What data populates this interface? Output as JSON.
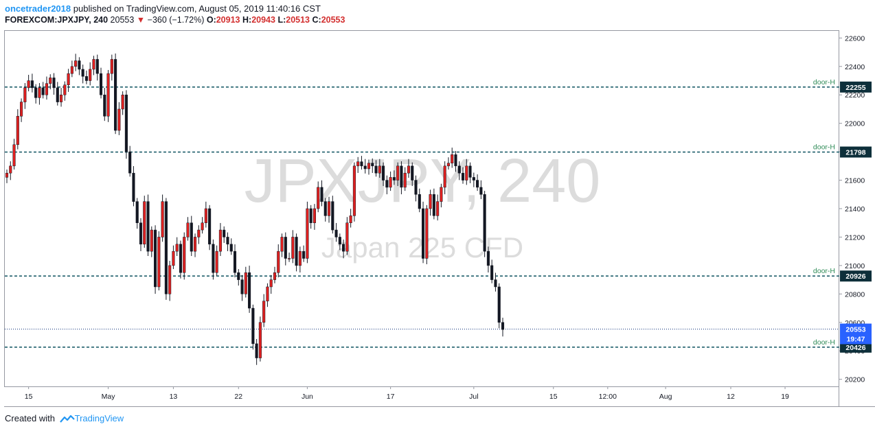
{
  "header": {
    "author": "oncetrader2018",
    "published_text": "published on TradingView.com, August 05, 2019 11:40:16 CST",
    "symbol": "FOREXCOM:JPXJPY, 240",
    "last": "20553",
    "change": "−360 (−1.72%)",
    "o_label": "O:",
    "o_value": "20913",
    "h_label": "H:",
    "h_value": "20943",
    "l_label": "L:",
    "l_value": "20513",
    "c_label": "C:",
    "c_value": "20553"
  },
  "watermark": {
    "symbol": "JPXJPY, 240",
    "name": "Japan 225 CFD"
  },
  "footer": {
    "created_with": "Created with",
    "brand": "TradingView"
  },
  "colors": {
    "up": "#e02020",
    "down": "#131722",
    "level_line": "#1f5f6b",
    "level_label": "#2e8b57",
    "price_box": "#0d2f3a",
    "last_box": "#2962ff",
    "grid_border": "#9598a1"
  },
  "chart_data": {
    "type": "candlestick",
    "interval": "240",
    "ylim": [
      20150,
      22650
    ],
    "y_ticks": [
      20200,
      20400,
      20600,
      20800,
      21000,
      21200,
      21400,
      21600,
      21800,
      22000,
      22200,
      22400,
      22600
    ],
    "x_ticks": [
      {
        "label": "15",
        "x_idx": 6
      },
      {
        "label": "May",
        "x_idx": 28
      },
      {
        "label": "13",
        "x_idx": 46
      },
      {
        "label": "22",
        "x_idx": 64
      },
      {
        "label": "Jun",
        "x_idx": 83
      },
      {
        "label": "17",
        "x_idx": 106
      },
      {
        "label": "Jul",
        "x_idx": 129
      },
      {
        "label": "15",
        "x_idx": 151
      },
      {
        "label": "12:00",
        "x_idx": 166
      },
      {
        "label": "Aug",
        "x_idx": 182
      },
      {
        "label": "12",
        "x_idx": 200
      },
      {
        "label": "19",
        "x_idx": 215
      }
    ],
    "levels": [
      {
        "price": 22255,
        "label": "door-H",
        "value": "22255"
      },
      {
        "price": 21798,
        "label": "door-H",
        "value": "21798"
      },
      {
        "price": 20926,
        "label": "door-H",
        "value": "20926"
      },
      {
        "price": 20426,
        "label": "door-H",
        "value": "20426"
      }
    ],
    "last_price": {
      "price": 20553,
      "value": "20553",
      "countdown": "19:47"
    },
    "close": [
      21650,
      21700,
      21850,
      22050,
      22150,
      22250,
      22300,
      22250,
      22180,
      22250,
      22200,
      22280,
      22320,
      22250,
      22150,
      22200,
      22270,
      22350,
      22400,
      22440,
      22380,
      22330,
      22300,
      22380,
      22450,
      22350,
      22200,
      22050,
      22350,
      22450,
      21950,
      22100,
      22200,
      21800,
      21650,
      21450,
      21300,
      21150,
      21450,
      21100,
      21250,
      20850,
      21200,
      21450,
      20800,
      21000,
      21100,
      21150,
      20950,
      21200,
      21300,
      21100,
      21200,
      21250,
      21300,
      21400,
      21150,
      20950,
      21100,
      21250,
      21200,
      21150,
      21100,
      20950,
      20900,
      20800,
      20950,
      20700,
      20450,
      20350,
      20600,
      20750,
      20850,
      20900,
      20950,
      21100,
      21200,
      21050,
      21050,
      21200,
      21000,
      21100,
      21050,
      21400,
      21300,
      21400,
      21550,
      21450,
      21350,
      21450,
      21250,
      21200,
      21150,
      21100,
      21300,
      21350,
      21700,
      21730,
      21700,
      21680,
      21720,
      21700,
      21650,
      21700,
      21600,
      21550,
      21620,
      21600,
      21700,
      21550,
      21650,
      21700,
      21600,
      21500,
      21400,
      21050,
      21400,
      21500,
      21350,
      21450,
      21550,
      21700,
      21720,
      21780,
      21700,
      21650,
      21600,
      21700,
      21620,
      21600,
      21550,
      21500,
      21100,
      21000,
      20900,
      20850,
      20600,
      20550
    ],
    "title": "",
    "xlabel": "",
    "ylabel": ""
  }
}
